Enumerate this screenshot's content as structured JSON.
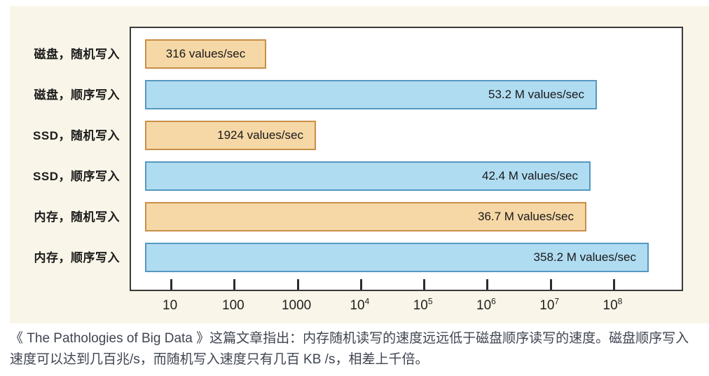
{
  "figure": {
    "background": "#f9f5e8"
  },
  "chart_data": {
    "type": "bar",
    "orientation": "horizontal",
    "x_scale": "log",
    "axis_min": 2.3,
    "axis_max": 1300000000,
    "grid": false,
    "legend": "none",
    "categories": [
      "磁盘，随机写入",
      "磁盘，顺序写入",
      "SSD，随机写入",
      "SSD，顺序写入",
      "内存，随机写入",
      "内存，顺序写入"
    ],
    "values": [
      316,
      53200000,
      1924,
      42400000,
      36700000,
      358200000
    ],
    "bar_labels": [
      "316 values/sec",
      "53.2 M values/sec",
      "1924 values/sec",
      "42.4 M values/sec",
      "36.7 M values/sec",
      "358.2 M values/sec"
    ],
    "bar_styles": [
      "orange",
      "blue",
      "orange",
      "blue",
      "orange",
      "blue"
    ],
    "colors": {
      "orange_fill": "#f6d8a6",
      "orange_border": "#c98f49",
      "blue_fill": "#b0dcf1",
      "blue_border": "#5598c0"
    },
    "x_tick_values": [
      10,
      100,
      1000,
      10000,
      100000,
      1000000,
      10000000,
      100000000
    ],
    "x_tick_labels": [
      {
        "text": "10",
        "sup": ""
      },
      {
        "text": "100",
        "sup": ""
      },
      {
        "text": "1000",
        "sup": ""
      },
      {
        "text": "10",
        "sup": "4"
      },
      {
        "text": "10",
        "sup": "5"
      },
      {
        "text": "10",
        "sup": "6"
      },
      {
        "text": "10",
        "sup": "7"
      },
      {
        "text": "10",
        "sup": "8"
      }
    ]
  },
  "caption": {
    "text": "《 The Pathologies of Big Data 》这篇文章指出：内存随机读写的速度远远低于磁盘顺序读写的速度。磁盘顺序写入速度可以达到几百兆/s，而随机写入速度只有几百 KB /s，相差上千倍。"
  }
}
